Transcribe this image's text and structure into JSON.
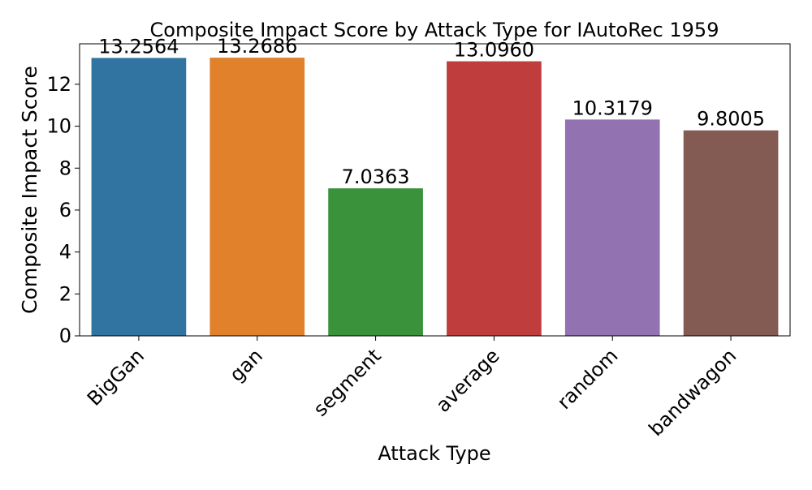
{
  "chart_data": {
    "type": "bar",
    "title": "Composite Impact Score by Attack Type for IAutoRec 1959",
    "xlabel": "Attack Type",
    "ylabel": "Composite Impact Score",
    "categories": [
      "BigGan",
      "gan",
      "segment",
      "average",
      "random",
      "bandwagon"
    ],
    "values": [
      13.2564,
      13.2686,
      7.0363,
      13.096,
      10.3179,
      9.8005
    ],
    "value_labels": [
      "13.2564",
      "13.2686",
      "7.0363",
      "13.0960",
      "10.3179",
      "9.8005"
    ],
    "colors": [
      "#3274a1",
      "#e1812c",
      "#3a923a",
      "#c03d3e",
      "#9372b2",
      "#845b53"
    ],
    "ylim": [
      0,
      13.93
    ],
    "yticks": [
      0,
      2,
      4,
      6,
      8,
      10,
      12
    ],
    "ytick_labels": [
      "0",
      "2",
      "4",
      "6",
      "8",
      "10",
      "12"
    ],
    "grid": false,
    "legend": "none"
  }
}
